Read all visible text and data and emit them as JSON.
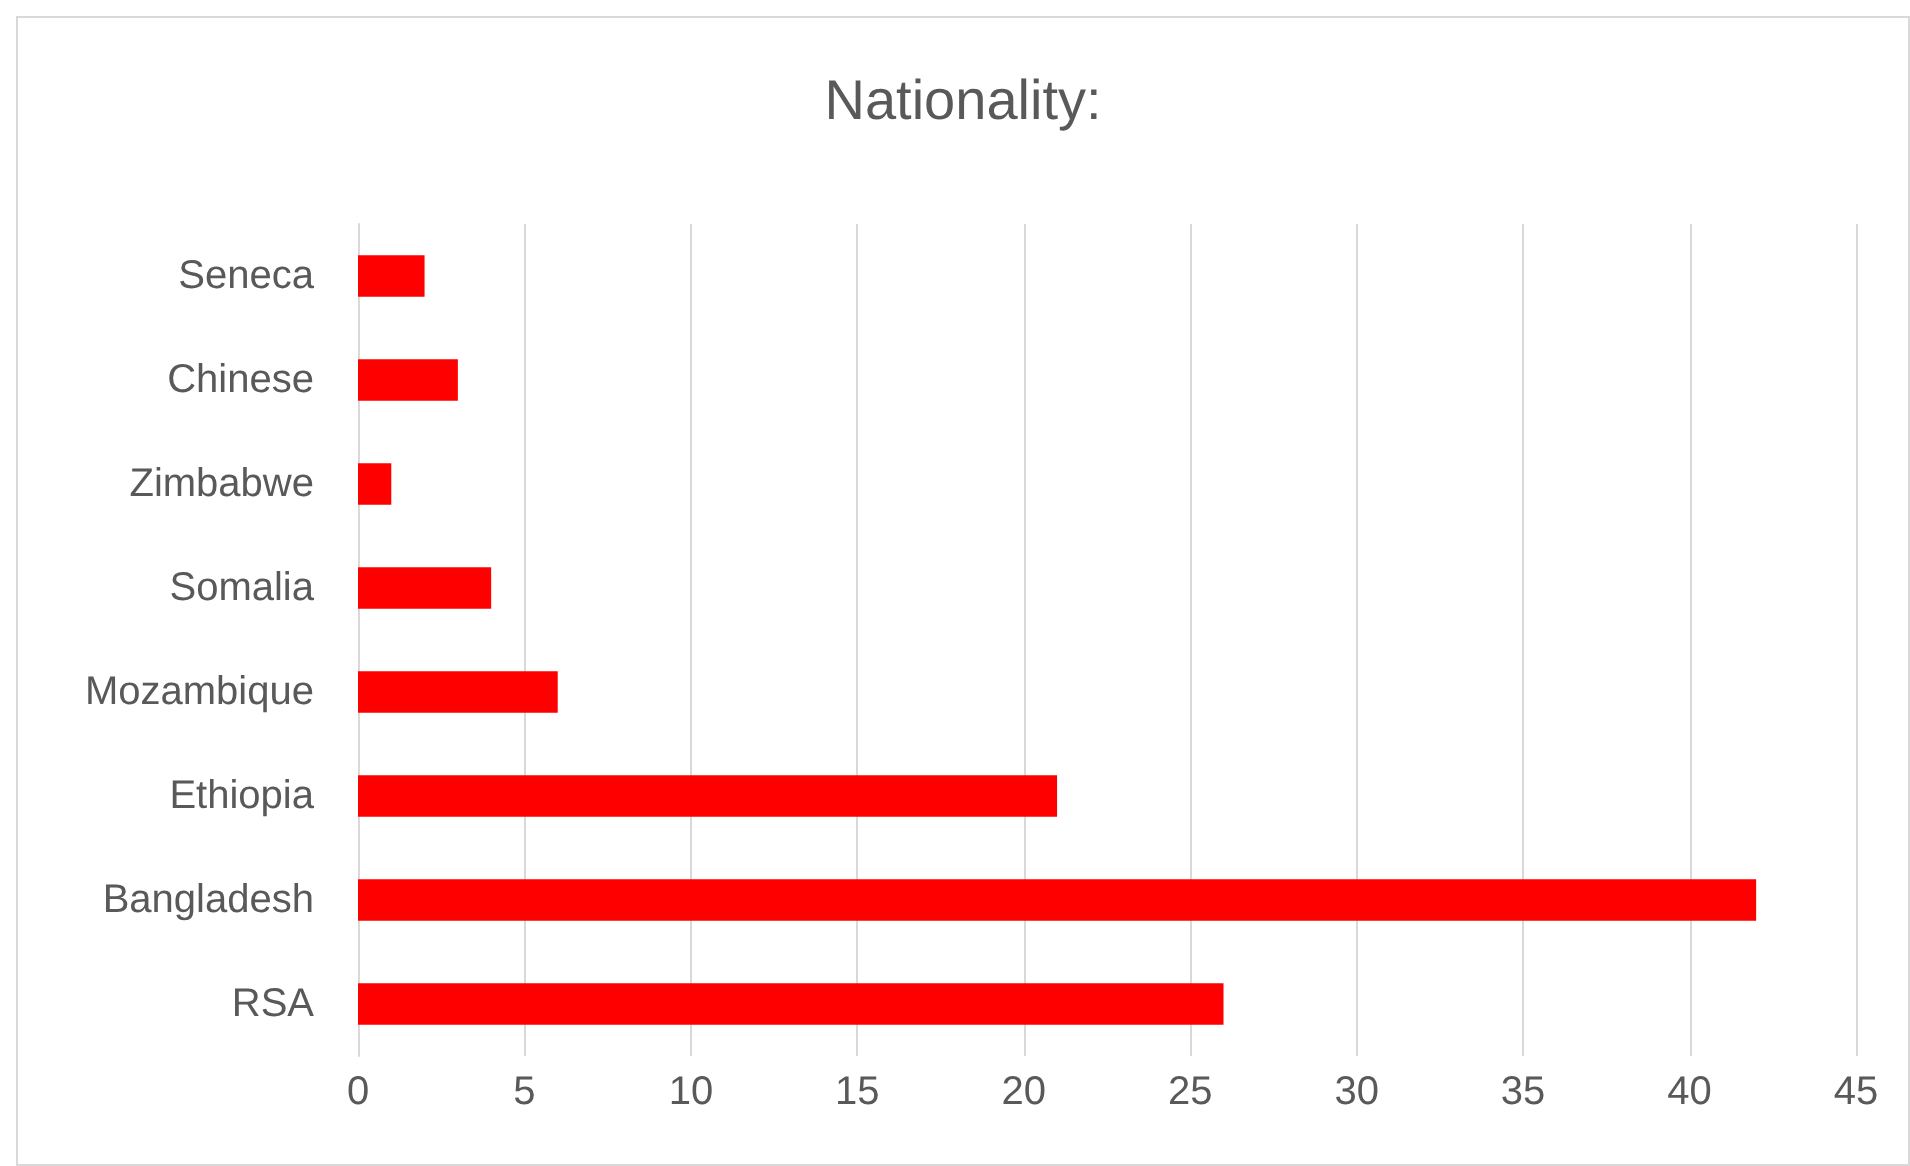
{
  "chart_data": {
    "type": "bar",
    "orientation": "horizontal",
    "title": "Nationality:",
    "categories": [
      "Seneca",
      "Chinese",
      "Zimbabwe",
      "Somalia",
      "Mozambique",
      "Ethiopia",
      "Bangladesh",
      "RSA"
    ],
    "values": [
      2,
      3,
      1,
      4,
      6,
      21,
      42,
      26
    ],
    "color": "#ff0000",
    "xlim": [
      0,
      45
    ],
    "xticks": [
      0,
      5,
      10,
      15,
      20,
      25,
      30,
      35,
      40,
      45
    ],
    "grid": "x"
  }
}
